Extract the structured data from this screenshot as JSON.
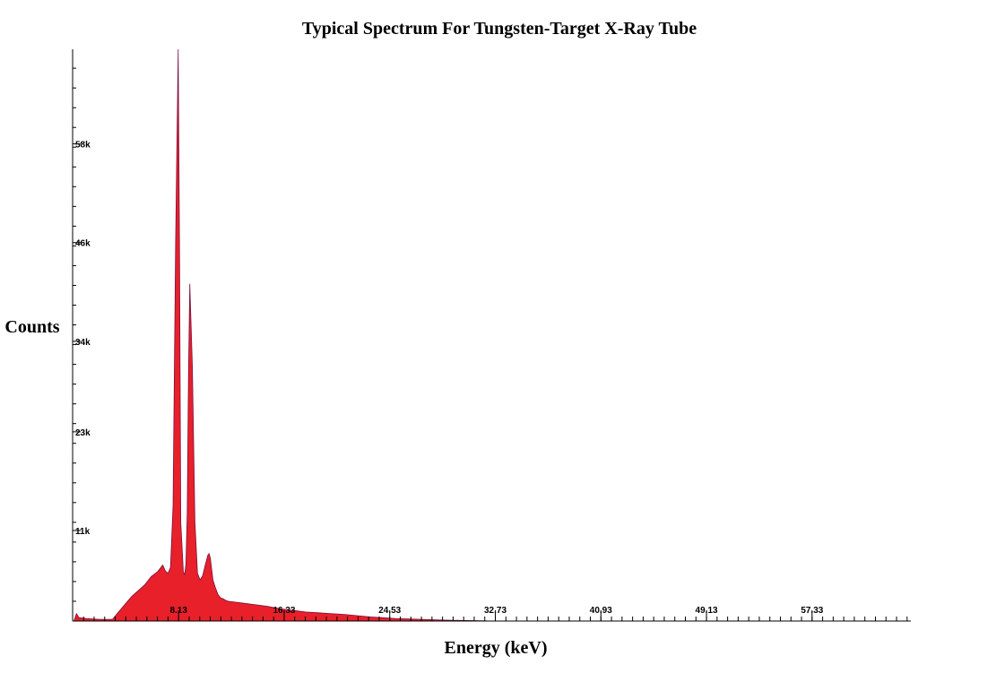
{
  "chart_data": {
    "type": "area",
    "title": "Typical Spectrum For Tungsten-Target X-Ray Tube",
    "xlabel": "Energy (keV)",
    "ylabel": "Counts",
    "x_tick_labels": [
      "8.13",
      "16.33",
      "24.53",
      "32.73",
      "40.93",
      "49.13",
      "57.33"
    ],
    "x_ticks": [
      8.13,
      16.33,
      24.53,
      32.73,
      40.93,
      49.13,
      57.33
    ],
    "y_tick_labels": [
      "11k",
      "23k",
      "34k",
      "46k",
      "58k"
    ],
    "y_ticks": [
      11000,
      23000,
      34000,
      46000,
      58000
    ],
    "xlim": [
      -0.1,
      65.0
    ],
    "ylim": [
      0,
      69500
    ],
    "grid": false,
    "fill_color": "#e8202a",
    "edge_color": "#7a1040",
    "series": [
      {
        "x": [
          0.0,
          0.2,
          0.4,
          1.0,
          2.0,
          3.0,
          3.2,
          4.0,
          4.5,
          5.0,
          5.5,
          6.0,
          6.5,
          6.9,
          7.1,
          7.3,
          7.5,
          7.7,
          7.9,
          8.1,
          8.2,
          8.3,
          8.5,
          8.6,
          8.7,
          8.8,
          8.9,
          9.0,
          9.2,
          9.4,
          9.6,
          9.8,
          10.0,
          10.2,
          10.4,
          10.5,
          10.6,
          10.8,
          11.0,
          11.2,
          11.4,
          11.6,
          11.8,
          12.0,
          12.5,
          13.0,
          14.0,
          15.0,
          16.0,
          17.0,
          18.0,
          19.0,
          20.0,
          21.0,
          22.0,
          23.0,
          24.0,
          25.0,
          26.0,
          27.0,
          28.0,
          29.0,
          30.0,
          31.0,
          32.0,
          32.5
        ],
        "values": [
          0,
          900,
          400,
          300,
          200,
          200,
          600,
          2100,
          3000,
          3700,
          4400,
          5400,
          6000,
          6800,
          6100,
          5800,
          6500,
          14000,
          46000,
          69500,
          46000,
          12000,
          6000,
          5600,
          7000,
          13000,
          30000,
          41000,
          31000,
          12000,
          5800,
          5000,
          5500,
          6800,
          8000,
          8200,
          7600,
          5000,
          4000,
          3200,
          2800,
          2700,
          2500,
          2400,
          2300,
          2200,
          2000,
          1800,
          1500,
          1300,
          1100,
          1000,
          900,
          800,
          650,
          500,
          400,
          300,
          250,
          200,
          150,
          100,
          80,
          50,
          20,
          0
        ]
      }
    ]
  }
}
